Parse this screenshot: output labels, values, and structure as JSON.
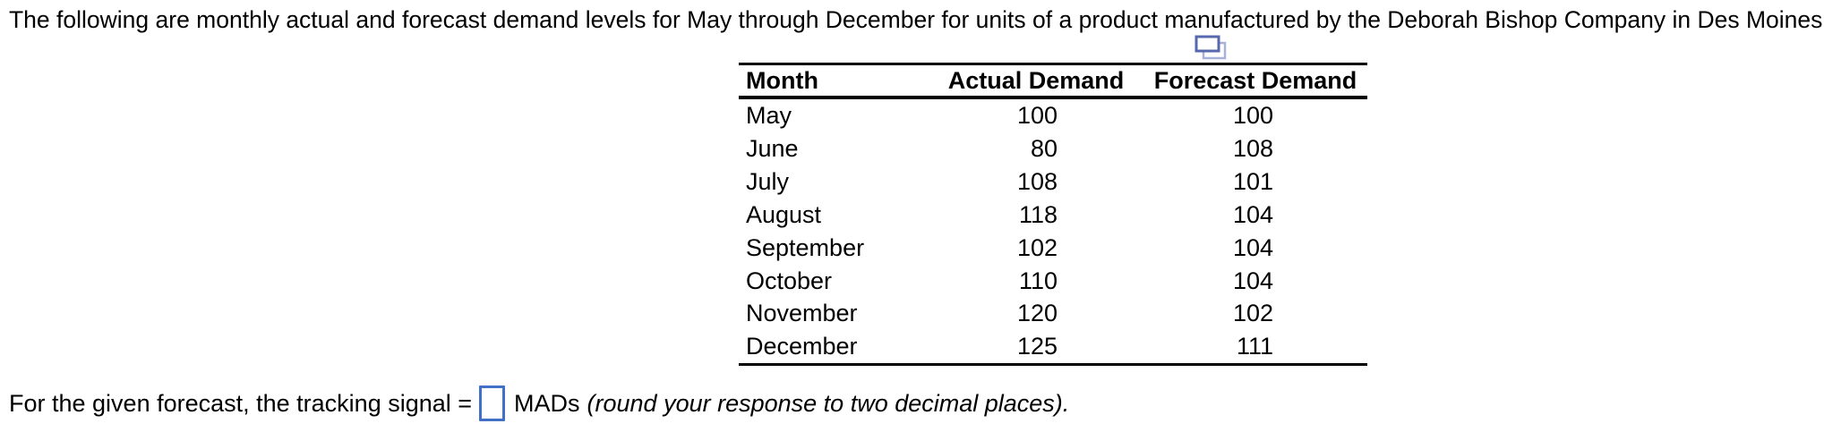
{
  "page": {
    "title": "The following are monthly actual and forecast demand levels for May through December for units of a product manufactured by the Deborah Bishop Company in Des Moines:"
  },
  "icons": {
    "copy_icon": "two overlapping rectangles (duplicate/copy)"
  },
  "table": {
    "columns": [
      "Month",
      "Actual Demand",
      "Forecast Demand"
    ],
    "rows": [
      {
        "month": "May",
        "actual": "100",
        "forecast": "100"
      },
      {
        "month": "June",
        "actual": "80",
        "forecast": "108"
      },
      {
        "month": "July",
        "actual": "108",
        "forecast": "101"
      },
      {
        "month": "August",
        "actual": "118",
        "forecast": "104"
      },
      {
        "month": "September",
        "actual": "102",
        "forecast": "104"
      },
      {
        "month": "October",
        "actual": "110",
        "forecast": "104"
      },
      {
        "month": "November",
        "actual": "120",
        "forecast": "102"
      },
      {
        "month": "December",
        "actual": "125",
        "forecast": "111"
      }
    ]
  },
  "question": {
    "prefix": "For the given forecast, the tracking signal =",
    "answer_value": "",
    "unit_label": "MADs",
    "note": "(round your response to two decimal places)."
  },
  "colors": {
    "text": "#000000",
    "input_border": "#4070C8",
    "icon_front": "#5868AE",
    "icon_back": "#A8B1D8"
  }
}
